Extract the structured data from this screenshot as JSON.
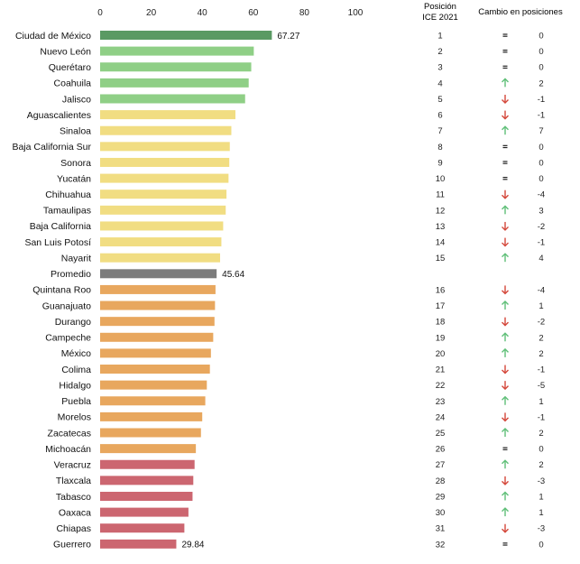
{
  "chart_data": {
    "type": "bar",
    "orientation": "horizontal",
    "xlim": [
      0,
      100
    ],
    "x_ticks": [
      "0",
      "20",
      "40",
      "60",
      "80",
      "100"
    ],
    "grid": false,
    "legend": "none",
    "columns": {
      "position_header_line1": "Posición",
      "position_header_line2": "ICE 2021",
      "change_header": "Cambio en posiciones"
    },
    "colors": {
      "top": "#5a9a63",
      "high": "#8fcf86",
      "upper_mid": "#f1dd82",
      "average": "#7c7c7c",
      "lower_mid": "#e8a75e",
      "low": "#cc6670",
      "arrow_up": "#5fbf78",
      "arrow_down": "#d4473a",
      "no_change": "#222222"
    },
    "rows": [
      {
        "state": "Ciudad de México",
        "value": 67.27,
        "label": "67.27",
        "tier": "top",
        "position": "1",
        "trend": "same",
        "change": "0"
      },
      {
        "state": "Nuevo León",
        "value": 60.2,
        "tier": "high",
        "position": "2",
        "trend": "same",
        "change": "0"
      },
      {
        "state": "Querétaro",
        "value": 59.2,
        "tier": "high",
        "position": "3",
        "trend": "same",
        "change": "0"
      },
      {
        "state": "Coahuila",
        "value": 58.2,
        "tier": "high",
        "position": "4",
        "trend": "up",
        "change": "2"
      },
      {
        "state": "Jalisco",
        "value": 56.8,
        "tier": "high",
        "position": "5",
        "trend": "down",
        "change": "-1"
      },
      {
        "state": "Aguascalientes",
        "value": 53.0,
        "tier": "upper_mid",
        "position": "6",
        "trend": "down",
        "change": "-1"
      },
      {
        "state": "Sinaloa",
        "value": 51.4,
        "tier": "upper_mid",
        "position": "7",
        "trend": "up",
        "change": "7"
      },
      {
        "state": "Baja California Sur",
        "value": 50.8,
        "tier": "upper_mid",
        "position": "8",
        "trend": "same",
        "change": "0"
      },
      {
        "state": "Sonora",
        "value": 50.6,
        "tier": "upper_mid",
        "position": "9",
        "trend": "same",
        "change": "0"
      },
      {
        "state": "Yucatán",
        "value": 50.3,
        "tier": "upper_mid",
        "position": "10",
        "trend": "same",
        "change": "0"
      },
      {
        "state": "Chihuahua",
        "value": 49.5,
        "tier": "upper_mid",
        "position": "11",
        "trend": "down",
        "change": "-4"
      },
      {
        "state": "Tamaulipas",
        "value": 49.2,
        "tier": "upper_mid",
        "position": "12",
        "trend": "up",
        "change": "3"
      },
      {
        "state": "Baja California",
        "value": 48.2,
        "tier": "upper_mid",
        "position": "13",
        "trend": "down",
        "change": "-2"
      },
      {
        "state": "San Luis Potosí",
        "value": 47.5,
        "tier": "upper_mid",
        "position": "14",
        "trend": "down",
        "change": "-1"
      },
      {
        "state": "Nayarit",
        "value": 47.0,
        "tier": "upper_mid",
        "position": "15",
        "trend": "up",
        "change": "4"
      },
      {
        "state": "Promedio",
        "value": 45.64,
        "label": "45.64",
        "tier": "average",
        "position": "",
        "trend": "none",
        "change": ""
      },
      {
        "state": "Quintana Roo",
        "value": 45.2,
        "tier": "lower_mid",
        "position": "16",
        "trend": "down",
        "change": "-4"
      },
      {
        "state": "Guanajuato",
        "value": 45.0,
        "tier": "lower_mid",
        "position": "17",
        "trend": "up",
        "change": "1"
      },
      {
        "state": "Durango",
        "value": 44.8,
        "tier": "lower_mid",
        "position": "18",
        "trend": "down",
        "change": "-2"
      },
      {
        "state": "Campeche",
        "value": 44.3,
        "tier": "lower_mid",
        "position": "19",
        "trend": "up",
        "change": "2"
      },
      {
        "state": "México",
        "value": 43.4,
        "tier": "lower_mid",
        "position": "20",
        "trend": "up",
        "change": "2"
      },
      {
        "state": "Colima",
        "value": 43.0,
        "tier": "lower_mid",
        "position": "21",
        "trend": "down",
        "change": "-1"
      },
      {
        "state": "Hidalgo",
        "value": 41.8,
        "tier": "lower_mid",
        "position": "22",
        "trend": "down",
        "change": "-5"
      },
      {
        "state": "Puebla",
        "value": 41.2,
        "tier": "lower_mid",
        "position": "23",
        "trend": "up",
        "change": "1"
      },
      {
        "state": "Morelos",
        "value": 40.0,
        "tier": "lower_mid",
        "position": "24",
        "trend": "down",
        "change": "-1"
      },
      {
        "state": "Zacatecas",
        "value": 39.5,
        "tier": "lower_mid",
        "position": "25",
        "trend": "up",
        "change": "2"
      },
      {
        "state": "Michoacán",
        "value": 37.5,
        "tier": "lower_mid",
        "position": "26",
        "trend": "same",
        "change": "0"
      },
      {
        "state": "Veracruz",
        "value": 37.0,
        "tier": "low",
        "position": "27",
        "trend": "up",
        "change": "2"
      },
      {
        "state": "Tlaxcala",
        "value": 36.5,
        "tier": "low",
        "position": "28",
        "trend": "down",
        "change": "-3"
      },
      {
        "state": "Tabasco",
        "value": 36.2,
        "tier": "low",
        "position": "29",
        "trend": "up",
        "change": "1"
      },
      {
        "state": "Oaxaca",
        "value": 34.6,
        "tier": "low",
        "position": "30",
        "trend": "up",
        "change": "1"
      },
      {
        "state": "Chiapas",
        "value": 33.0,
        "tier": "low",
        "position": "31",
        "trend": "down",
        "change": "-3"
      },
      {
        "state": "Guerrero",
        "value": 29.84,
        "label": "29.84",
        "tier": "low",
        "position": "32",
        "trend": "same",
        "change": "0"
      }
    ]
  }
}
